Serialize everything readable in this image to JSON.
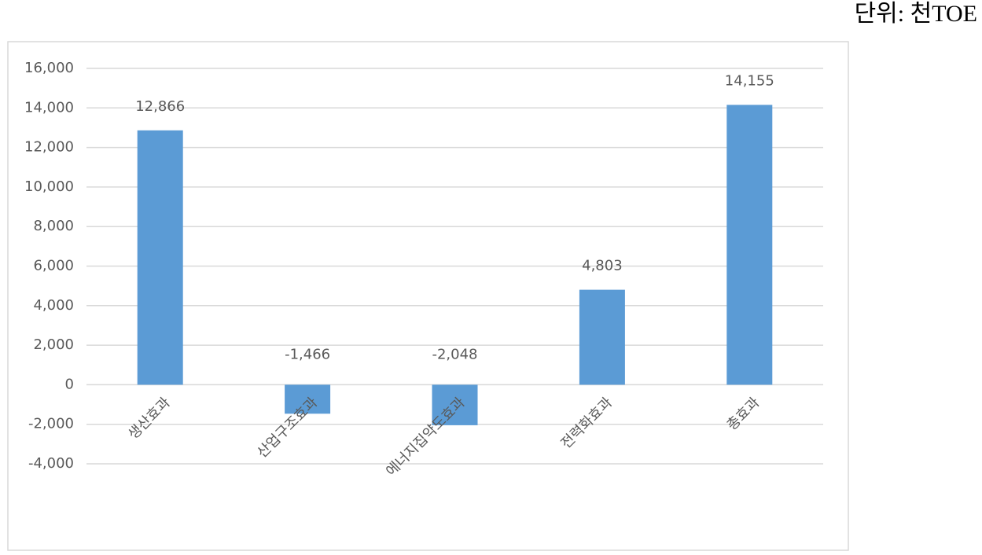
{
  "chart_data": {
    "type": "bar",
    "unit": "단위: 천TOE",
    "categories": [
      "생산효과",
      "산업구조효과",
      "에너지집약도효과",
      "전력화효과",
      "총효과"
    ],
    "values": [
      12866,
      -1466,
      -2048,
      4803,
      14155
    ],
    "value_labels": [
      "12,866",
      "-1,466",
      "-2,048",
      "4,803",
      "14,155"
    ],
    "color": "#5b9bd5",
    "ylim": [
      -4000,
      16000
    ],
    "yticks": [
      {
        "value": -4000,
        "label": "-4,000"
      },
      {
        "value": -2000,
        "label": "-2,000"
      },
      0,
      {
        "value": 2000,
        "label": "2,000"
      },
      {
        "value": 4000,
        "label": "4,000"
      },
      {
        "value": 6000,
        "label": "6,000"
      },
      {
        "value": 8000,
        "label": "8,000"
      },
      {
        "value": 10000,
        "label": "10,000"
      },
      {
        "value": 12000,
        "label": "12,000"
      },
      {
        "value": 14000,
        "label": "14,000"
      },
      {
        "value": 16000,
        "label": "16,000"
      }
    ],
    "grid": true
  }
}
